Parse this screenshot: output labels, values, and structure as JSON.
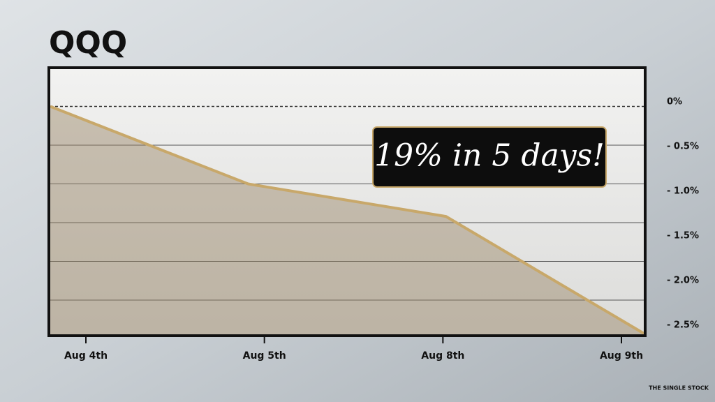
{
  "chart_data": {
    "type": "area",
    "title": "QQQ",
    "categories": [
      "Aug 4th",
      "Aug 5th",
      "Aug 8th",
      "Aug 9th"
    ],
    "values": [
      0,
      -1.0,
      -1.42,
      -2.93
    ],
    "color": "#c8a86a",
    "ylim": [
      -2.95,
      0.5
    ],
    "yticks": [
      {
        "value": 0,
        "label": "0%"
      },
      {
        "value": -0.5,
        "label": "- 0.5%"
      },
      {
        "value": -1.0,
        "label": "- 1.0%"
      },
      {
        "value": -1.5,
        "label": "- 1.5%"
      },
      {
        "value": -2.0,
        "label": "- 2.0%"
      },
      {
        "value": -2.5,
        "label": "- 2.5%"
      }
    ],
    "grid": true,
    "annotation": "19% in 5 days!",
    "branding": "THE SINGLE STOCK"
  }
}
